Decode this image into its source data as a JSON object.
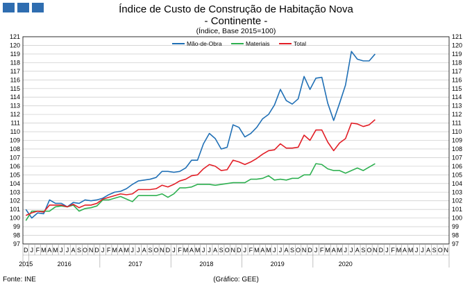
{
  "header": {
    "title": "Índice de Custo de Construção de Habitação Nova",
    "subtitle": "- Continente -",
    "note": "(Índice, Base 2015=100)"
  },
  "footer": {
    "source": "Fonte: INE",
    "credit": "(Gráfico: GEE)"
  },
  "chart_data": {
    "type": "line",
    "title": "Índice de Custo de Construção de Habitação Nova",
    "subtitle": "- Continente -",
    "ylabel": "(Índice, Base 2015=100)",
    "ylim": [
      97,
      121
    ],
    "yticks": [
      97,
      98,
      99,
      100,
      101,
      102,
      103,
      104,
      105,
      106,
      107,
      108,
      109,
      110,
      111,
      112,
      113,
      114,
      115,
      116,
      117,
      118,
      119,
      120,
      121
    ],
    "month_labels": [
      "D",
      "J",
      "F",
      "M",
      "A",
      "M",
      "J",
      "J",
      "A",
      "S",
      "O",
      "N",
      "D",
      "J",
      "F",
      "M",
      "A",
      "M",
      "J",
      "J",
      "A",
      "S",
      "O",
      "N",
      "D",
      "J",
      "F",
      "M",
      "A",
      "M",
      "J",
      "J",
      "A",
      "S",
      "O",
      "N",
      "D",
      "J",
      "F",
      "M",
      "A",
      "M",
      "J",
      "J",
      "A",
      "S",
      "O",
      "N",
      "D",
      "J",
      "F",
      "M",
      "A",
      "M",
      "J",
      "J",
      "A",
      "S",
      "O",
      "N",
      "D",
      "J",
      "F",
      "M",
      "A",
      "M",
      "J",
      "J",
      "A",
      "S",
      "O",
      "N"
    ],
    "year_labels": [
      {
        "label": "2015",
        "start": 0,
        "span": 1
      },
      {
        "label": "2016",
        "start": 1,
        "span": 12
      },
      {
        "label": "2017",
        "start": 13,
        "span": 12
      },
      {
        "label": "2018",
        "start": 25,
        "span": 12
      },
      {
        "label": "2019",
        "start": 37,
        "span": 12
      },
      {
        "label": "2020",
        "start": 49,
        "span": 11
      }
    ],
    "legend_position": "top-center",
    "series": [
      {
        "name": "Mão-de-Obra",
        "color": "#1f6fb5",
        "values": [
          101.0,
          100.0,
          100.6,
          100.5,
          102.1,
          101.7,
          101.7,
          101.3,
          101.8,
          101.7,
          102.1,
          102.0,
          102.1,
          102.3,
          102.7,
          103.0,
          103.1,
          103.4,
          103.9,
          104.3,
          104.4,
          104.5,
          104.7,
          105.4,
          105.4,
          105.3,
          105.4,
          105.8,
          106.7,
          106.7,
          108.6,
          109.8,
          109.2,
          108.0,
          108.2,
          110.8,
          110.5,
          109.4,
          109.8,
          110.5,
          111.5,
          112.0,
          113.1,
          114.9,
          113.6,
          113.2,
          113.8,
          116.4,
          114.9,
          116.2,
          116.3,
          113.3,
          111.3,
          113.3,
          115.4,
          119.3,
          118.4,
          118.2,
          118.2,
          119.0
        ]
      },
      {
        "name": "Materiais",
        "color": "#2eb050",
        "values": [
          99.7,
          100.8,
          100.8,
          100.8,
          100.8,
          101.3,
          101.4,
          101.3,
          101.5,
          100.8,
          101.1,
          101.2,
          101.4,
          102.1,
          102.1,
          102.3,
          102.5,
          102.2,
          101.9,
          102.6,
          102.6,
          102.6,
          102.6,
          102.8,
          102.4,
          102.8,
          103.5,
          103.5,
          103.6,
          103.9,
          103.9,
          103.9,
          103.8,
          103.9,
          104.0,
          104.1,
          104.1,
          104.1,
          104.5,
          104.5,
          104.6,
          104.9,
          104.4,
          104.5,
          104.4,
          104.6,
          104.6,
          105.0,
          105.0,
          106.3,
          106.2,
          105.7,
          105.5,
          105.5,
          105.2,
          105.5,
          105.8,
          105.5,
          105.9,
          106.3
        ]
      },
      {
        "name": "Total",
        "color": "#e21e26",
        "values": [
          100.3,
          100.6,
          100.8,
          100.7,
          101.5,
          101.5,
          101.5,
          101.3,
          101.6,
          101.2,
          101.5,
          101.5,
          101.7,
          102.2,
          102.4,
          102.6,
          102.8,
          102.7,
          102.8,
          103.3,
          103.3,
          103.3,
          103.4,
          103.8,
          103.6,
          103.9,
          104.3,
          104.5,
          104.9,
          105.0,
          105.7,
          106.2,
          106.0,
          105.5,
          105.6,
          106.7,
          106.5,
          106.2,
          106.5,
          106.9,
          107.4,
          107.8,
          107.9,
          108.6,
          108.1,
          108.1,
          108.2,
          109.6,
          109.0,
          110.2,
          110.2,
          108.8,
          107.8,
          108.7,
          109.2,
          111.0,
          110.9,
          110.6,
          110.8,
          111.4
        ]
      }
    ]
  }
}
